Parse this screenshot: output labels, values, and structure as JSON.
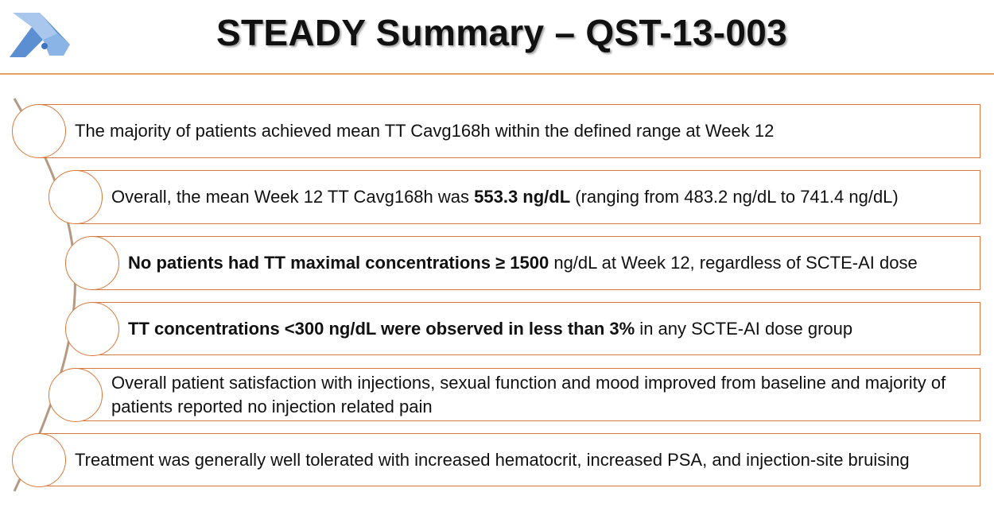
{
  "header": {
    "title": "STEADY Summary – QST-13-003",
    "logo_icon": "company-logo",
    "accent_color": "#d9783a",
    "rule_color": "#e8a062"
  },
  "items": [
    {
      "text_before": "",
      "bold": "",
      "text_after": "The majority of patients achieved mean TT Cavg168h within the defined range at Week 12"
    },
    {
      "text_before": "Overall, the mean Week 12 TT Cavg168h was ",
      "bold": "553.3 ng/dL",
      "text_after": " (ranging from 483.2 ng/dL to 741.4 ng/dL)"
    },
    {
      "text_before": "",
      "bold": "No patients had TT maximal concentrations ≥ 1500",
      "text_after": " ng/dL at Week 12, regardless of SCTE-AI dose"
    },
    {
      "text_before": "",
      "bold": "TT concentrations <300 ng/dL were observed in less than 3%",
      "text_after": " in any SCTE-AI dose group"
    },
    {
      "text_before": "",
      "bold": "",
      "text_after": "Overall patient satisfaction with injections, sexual function and mood improved from baseline and majority of patients reported no injection related pain"
    },
    {
      "text_before": "",
      "bold": "",
      "text_after": "Treatment was generally well tolerated  with increased hematocrit, increased PSA, and injection-site bruising"
    }
  ]
}
